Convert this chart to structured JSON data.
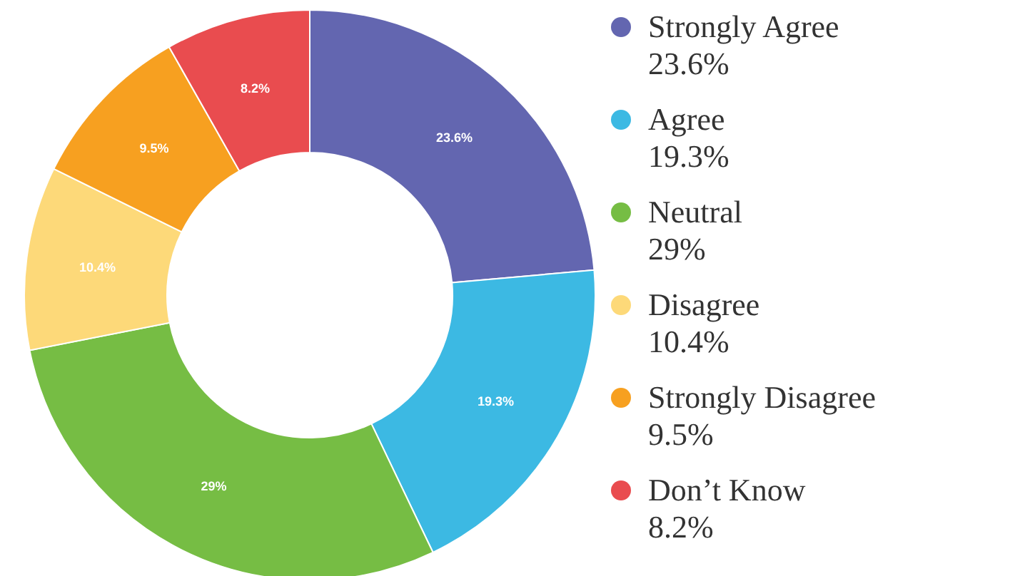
{
  "chart_data": {
    "type": "donut",
    "categories": [
      "Strongly Agree",
      "Agree",
      "Neutral",
      "Disagree",
      "Strongly Disagree",
      "Don’t Know"
    ],
    "values": [
      23.6,
      19.3,
      29,
      10.4,
      9.5,
      8.2
    ],
    "colors": [
      "#6366b0",
      "#3cb9e3",
      "#76bd44",
      "#fdd979",
      "#f7a020",
      "#e94c4f"
    ],
    "value_labels": [
      "23.6%",
      "19.3%",
      "29%",
      "10.4%",
      "9.5%",
      "8.2%"
    ],
    "legend": "right"
  }
}
